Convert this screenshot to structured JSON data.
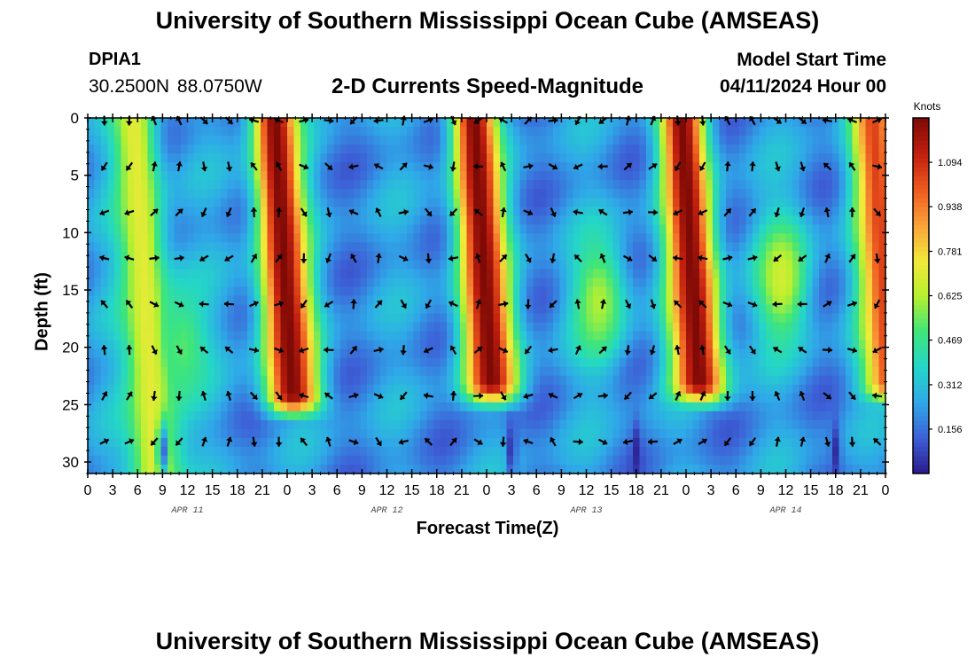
{
  "header": {
    "title": "University of Southern Mississippi Ocean Cube (AMSEAS)",
    "station": "DPIA1",
    "coords": "30.2500N  88.0750W",
    "subtitle": "2-D Currents Speed-Magnitude",
    "start_label": "Model Start Time",
    "start_value": "04/11/2024 Hour 00"
  },
  "footer": {
    "title": "University of Southern Mississippi Ocean Cube (AMSEAS)"
  },
  "chart_data": {
    "type": "heatmap",
    "title": "2-D Currents Speed-Magnitude",
    "xlabel": "Forecast Time(Z)",
    "ylabel": "Depth (ft)",
    "x_tick_labels": [
      "0",
      "3",
      "6",
      "9",
      "12",
      "15",
      "18",
      "21",
      "0",
      "3",
      "6",
      "9",
      "12",
      "15",
      "18",
      "21",
      "0",
      "3",
      "6",
      "9",
      "12",
      "15",
      "18",
      "21",
      "0",
      "3",
      "6",
      "9",
      "12",
      "15",
      "18",
      "21",
      "0"
    ],
    "x_range_hours": [
      0,
      96
    ],
    "date_labels": [
      {
        "label": "APR 11",
        "hour": 12
      },
      {
        "label": "APR 12",
        "hour": 36
      },
      {
        "label": "APR 13",
        "hour": 60
      },
      {
        "label": "APR 14",
        "hour": 84
      }
    ],
    "y_ticks": [
      0,
      5,
      10,
      15,
      20,
      25,
      30
    ],
    "y_range_ft": [
      0,
      31
    ],
    "y_inverted": true,
    "colorbar": {
      "unit": "Knots",
      "range": [
        0,
        1.25
      ],
      "tick_labels": [
        "0.156",
        "0.312",
        "0.469",
        "0.625",
        "0.781",
        "0.938",
        "1.094"
      ],
      "tick_values": [
        0.156,
        0.312,
        0.469,
        0.625,
        0.781,
        0.938,
        1.094
      ],
      "colors": [
        "#2a1a8c",
        "#3d5fd6",
        "#2fa8e8",
        "#24d6c8",
        "#3fe57a",
        "#b6f02f",
        "#f2e93a",
        "#f9a13a",
        "#ee5a1f",
        "#c01e0e",
        "#7e0a06"
      ]
    },
    "peaks_knots": [
      {
        "hour": 5.5,
        "depth_min": 0,
        "depth_max": 31,
        "value": 0.72
      },
      {
        "hour": 22.5,
        "depth_min": 0,
        "depth_max": 24,
        "value": 1.25
      },
      {
        "hour": 46.5,
        "depth_min": 0,
        "depth_max": 23,
        "value": 1.25
      },
      {
        "hour": 71.5,
        "depth_min": 0,
        "depth_max": 23,
        "value": 1.25
      },
      {
        "hour": 94.5,
        "depth_min": 0,
        "depth_max": 23,
        "value": 1.05
      }
    ],
    "secondary_peaks_knots": [
      {
        "hour": 11.5,
        "depth": 20,
        "value": 0.52
      },
      {
        "hour": 61.5,
        "depth": 16,
        "value": 0.62
      },
      {
        "hour": 83.5,
        "depth": 14,
        "value": 0.68
      }
    ],
    "vector_depths_ft": [
      0,
      4,
      8,
      12,
      16,
      20,
      24,
      28
    ],
    "vector_hours_step": 3
  }
}
